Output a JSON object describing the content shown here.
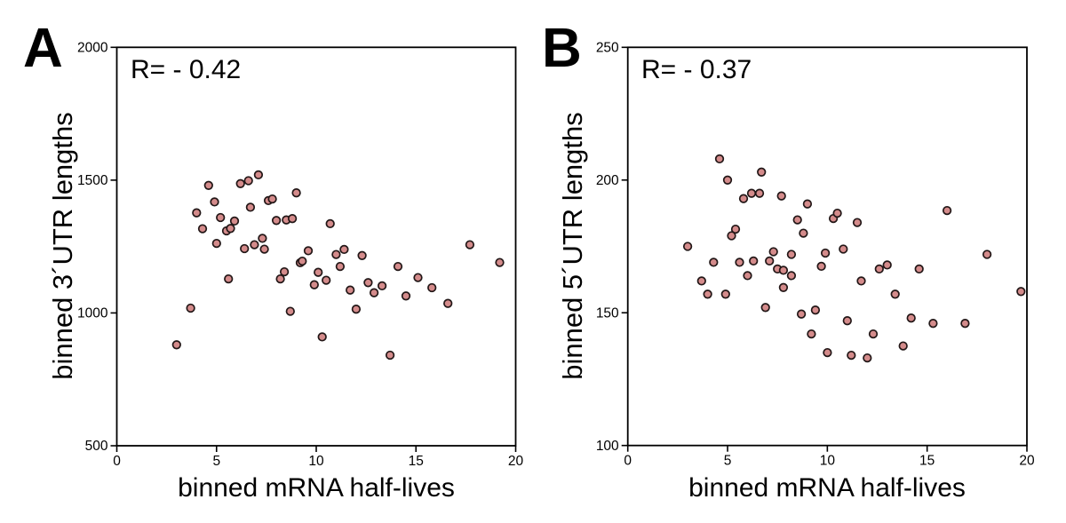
{
  "figure": {
    "panels": [
      {
        "letter": "A",
        "r_label": "R= - 0.42",
        "y_title": "binned 3´UTR lengths",
        "x_title": "binned mRNA half-lives"
      },
      {
        "letter": "B",
        "r_label": "R= - 0.37",
        "y_title": "binned 5´UTR lengths",
        "x_title": "binned mRNA half-lives"
      }
    ]
  },
  "colors": {
    "marker_fill": "#d48b8b",
    "marker_stroke": "#221717",
    "axis": "#000000",
    "background": "#ffffff"
  },
  "chart_data": [
    {
      "type": "scatter",
      "title": "A",
      "annotation": "R= - 0.42",
      "xlabel": "binned mRNA half-lives",
      "ylabel": "binned 3´UTR lengths",
      "xlim": [
        0,
        20
      ],
      "ylim": [
        500,
        2000
      ],
      "xticks": [
        0,
        5,
        10,
        15,
        20
      ],
      "yticks": [
        500,
        1000,
        1500,
        2000
      ],
      "grid": false,
      "points": [
        [
          4.6,
          1480
        ],
        [
          6.2,
          1487
        ],
        [
          6.6,
          1498
        ],
        [
          7.1,
          1520
        ],
        [
          9.0,
          1452
        ],
        [
          4.9,
          1418
        ],
        [
          7.6,
          1423
        ],
        [
          7.8,
          1429
        ],
        [
          4.0,
          1377
        ],
        [
          6.7,
          1398
        ],
        [
          5.2,
          1359
        ],
        [
          5.9,
          1346
        ],
        [
          8.0,
          1348
        ],
        [
          8.5,
          1350
        ],
        [
          8.8,
          1355
        ],
        [
          4.3,
          1317
        ],
        [
          5.5,
          1309
        ],
        [
          5.7,
          1318
        ],
        [
          5.0,
          1262
        ],
        [
          6.4,
          1242
        ],
        [
          6.9,
          1257
        ],
        [
          7.3,
          1281
        ],
        [
          7.4,
          1240
        ],
        [
          9.6,
          1234
        ],
        [
          9.2,
          1189
        ],
        [
          9.3,
          1195
        ],
        [
          8.4,
          1155
        ],
        [
          8.2,
          1128
        ],
        [
          10.1,
          1153
        ],
        [
          10.5,
          1123
        ],
        [
          9.9,
          1106
        ],
        [
          5.6,
          1128
        ],
        [
          3.7,
          1018
        ],
        [
          8.7,
          1006
        ],
        [
          11.0,
          1220
        ],
        [
          11.4,
          1239
        ],
        [
          11.2,
          1175
        ],
        [
          12.3,
          1216
        ],
        [
          14.1,
          1175
        ],
        [
          15.1,
          1133
        ],
        [
          12.6,
          1114
        ],
        [
          13.3,
          1102
        ],
        [
          12.9,
          1076
        ],
        [
          11.7,
          1086
        ],
        [
          14.5,
          1064
        ],
        [
          12.0,
          1014
        ],
        [
          15.8,
          1095
        ],
        [
          16.6,
          1036
        ],
        [
          17.7,
          1257
        ],
        [
          19.2,
          1190
        ],
        [
          10.7,
          1336
        ],
        [
          3.0,
          880
        ],
        [
          10.3,
          910
        ],
        [
          13.7,
          841
        ]
      ]
    },
    {
      "type": "scatter",
      "title": "B",
      "annotation": "R= - 0.37",
      "xlabel": "binned mRNA half-lives",
      "ylabel": "binned 5´UTR lengths",
      "xlim": [
        0,
        20
      ],
      "ylim": [
        100,
        250
      ],
      "xticks": [
        0,
        5,
        10,
        15,
        20
      ],
      "yticks": [
        100,
        150,
        200,
        250
      ],
      "grid": false,
      "points": [
        [
          4.6,
          208
        ],
        [
          5.0,
          200
        ],
        [
          6.7,
          203
        ],
        [
          5.8,
          193
        ],
        [
          6.2,
          195
        ],
        [
          6.6,
          195
        ],
        [
          7.7,
          194
        ],
        [
          9.0,
          191
        ],
        [
          8.5,
          185
        ],
        [
          10.3,
          185.5
        ],
        [
          10.5,
          187.5
        ],
        [
          8.8,
          180
        ],
        [
          5.4,
          181.5
        ],
        [
          5.2,
          179
        ],
        [
          3.0,
          175
        ],
        [
          7.3,
          173
        ],
        [
          8.2,
          172
        ],
        [
          9.9,
          172.5
        ],
        [
          9.7,
          167.5
        ],
        [
          4.3,
          169
        ],
        [
          5.6,
          169
        ],
        [
          6.3,
          169.5
        ],
        [
          7.1,
          169.5
        ],
        [
          7.5,
          166.5
        ],
        [
          7.8,
          166
        ],
        [
          8.2,
          164
        ],
        [
          6.0,
          164
        ],
        [
          3.7,
          162
        ],
        [
          11.5,
          184
        ],
        [
          16.0,
          188.5
        ],
        [
          10.8,
          174
        ],
        [
          18.0,
          172
        ],
        [
          12.6,
          166.5
        ],
        [
          13.0,
          168
        ],
        [
          14.6,
          166.5
        ],
        [
          11.7,
          162
        ],
        [
          4.0,
          157
        ],
        [
          4.9,
          157
        ],
        [
          7.8,
          159.5
        ],
        [
          6.9,
          152
        ],
        [
          8.7,
          149.5
        ],
        [
          9.4,
          151
        ],
        [
          9.2,
          142
        ],
        [
          10.0,
          135
        ],
        [
          11.0,
          147
        ],
        [
          13.4,
          157
        ],
        [
          19.7,
          158
        ],
        [
          14.2,
          148
        ],
        [
          15.3,
          146
        ],
        [
          16.9,
          146
        ],
        [
          12.3,
          142
        ],
        [
          13.8,
          137.5
        ],
        [
          11.2,
          134
        ],
        [
          12.0,
          133
        ]
      ]
    }
  ]
}
